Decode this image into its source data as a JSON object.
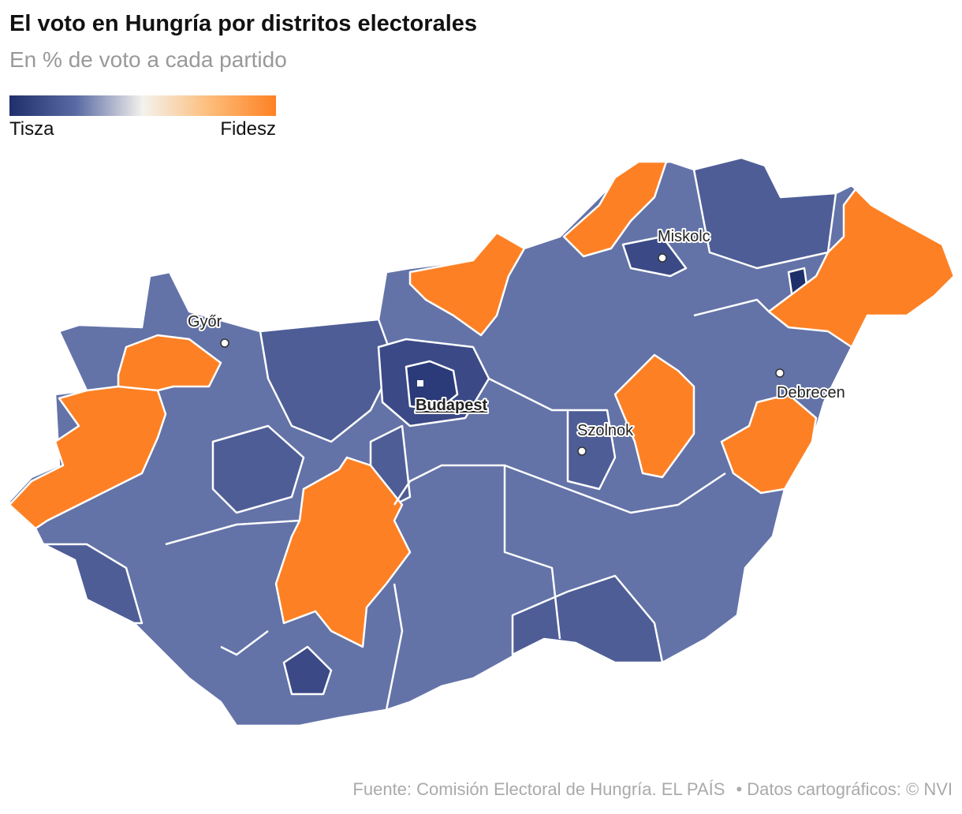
{
  "header": {
    "title": "El voto en Hungría por distritos electorales",
    "subtitle": "En % de voto a cada partido"
  },
  "legend": {
    "left": "Tisza",
    "right": "Fidesz"
  },
  "map": {
    "cities": [
      "Győr",
      "Budapest",
      "Miskolc",
      "Szolnok",
      "Debrecen"
    ]
  },
  "footer": {
    "source": "Fuente: Comisión Electoral de Hungría. EL PAÍS",
    "credit": "• Datos cartográficos: © NVI"
  }
}
